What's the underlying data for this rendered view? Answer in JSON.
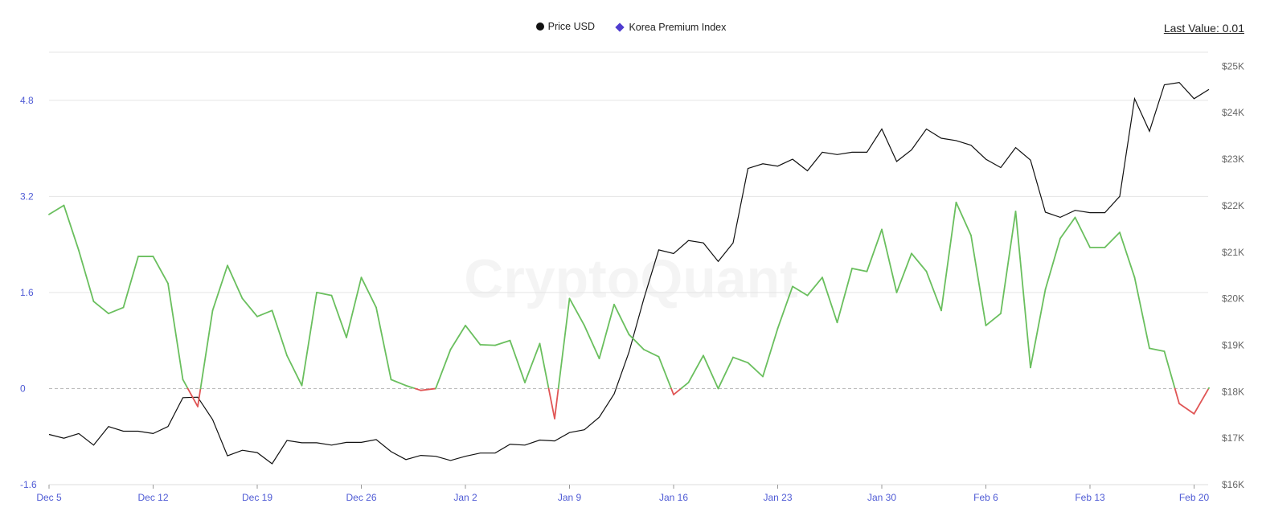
{
  "legend": {
    "price_label": "Price USD",
    "premium_label": "Korea Premium Index",
    "last_value": "Last Value: 0.01"
  },
  "watermark": "CryptoQuant",
  "colors": {
    "price": "#111111",
    "premium_positive": "#6abf5e",
    "premium_negative": "#e05555",
    "zero_line": "#bbbbbb",
    "grid": "#e5e5e5",
    "left_axis_text": "#4f5bd5"
  },
  "chart_data": {
    "type": "line",
    "x_start": "2022-12-05",
    "x_ticks": [
      "Dec 5",
      "Dec 12",
      "Dec 19",
      "Dec 26",
      "Jan 2",
      "Jan 9",
      "Jan 16",
      "Jan 23",
      "Jan 30",
      "Feb 6",
      "Feb 13",
      "Feb 20"
    ],
    "left_axis": {
      "ticks": [
        "-1.6",
        "0",
        "1.6",
        "3.2",
        "4.8"
      ],
      "min": -1.6,
      "max": 5.6
    },
    "right_axis": {
      "ticks": [
        "$16K",
        "$17K",
        "$18K",
        "$19K",
        "$20K",
        "$21K",
        "$22K",
        "$23K",
        "$24K",
        "$25K"
      ],
      "min": 16000,
      "max": 25300
    },
    "series": [
      {
        "name": "Price USD",
        "axis": "right",
        "values": [
          17080,
          17000,
          17100,
          16850,
          17250,
          17150,
          17150,
          17100,
          17250,
          17870,
          17880,
          17400,
          16620,
          16740,
          16690,
          16450,
          16950,
          16900,
          16900,
          16850,
          16910,
          16910,
          16970,
          16710,
          16540,
          16630,
          16610,
          16520,
          16610,
          16680,
          16680,
          16870,
          16850,
          16960,
          16940,
          17120,
          17180,
          17450,
          17950,
          18850,
          20000,
          21050,
          20970,
          21250,
          21200,
          20800,
          21200,
          22800,
          22900,
          22850,
          23000,
          22750,
          23150,
          23100,
          23150,
          23150,
          23650,
          22950,
          23200,
          23650,
          23450,
          23400,
          23300,
          23000,
          22820,
          23250,
          22980,
          21860,
          21750,
          21900,
          21850,
          21850,
          22200,
          24300,
          23600,
          24600,
          24650,
          24300,
          24500
        ]
      },
      {
        "name": "Korea Premium Index",
        "axis": "left",
        "values": [
          2.9,
          3.05,
          2.3,
          1.45,
          1.25,
          1.35,
          2.2,
          2.2,
          1.75,
          0.15,
          -0.3,
          1.3,
          2.05,
          1.5,
          1.2,
          1.3,
          0.55,
          0.05,
          1.6,
          1.55,
          0.85,
          1.85,
          1.35,
          0.15,
          0.05,
          -0.03,
          0.0,
          0.65,
          1.05,
          0.73,
          0.72,
          0.8,
          0.1,
          0.75,
          -0.5,
          1.5,
          1.05,
          0.5,
          1.4,
          0.9,
          0.65,
          0.53,
          -0.1,
          0.1,
          0.55,
          0.0,
          0.52,
          0.43,
          0.2,
          1.0,
          1.7,
          1.55,
          1.85,
          1.1,
          2.0,
          1.95,
          2.65,
          1.6,
          2.25,
          1.95,
          1.3,
          3.1,
          2.55,
          1.05,
          1.25,
          2.95,
          0.35,
          1.65,
          2.5,
          2.85,
          2.35,
          2.35,
          2.6,
          1.85,
          0.67,
          0.62,
          -0.25,
          -0.42,
          0.01
        ]
      }
    ]
  }
}
